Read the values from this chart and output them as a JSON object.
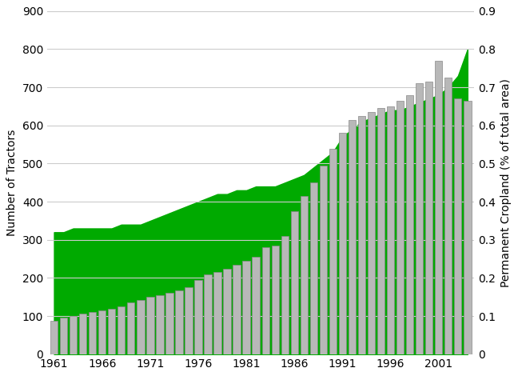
{
  "years": [
    1961,
    1962,
    1963,
    1964,
    1965,
    1966,
    1967,
    1968,
    1969,
    1970,
    1971,
    1972,
    1973,
    1974,
    1975,
    1976,
    1977,
    1978,
    1979,
    1980,
    1981,
    1982,
    1983,
    1984,
    1985,
    1986,
    1987,
    1988,
    1989,
    1990,
    1991,
    1992,
    1993,
    1994,
    1995,
    1996,
    1997,
    1998,
    1999,
    2000,
    2001,
    2002,
    2003,
    2004
  ],
  "tractors": [
    88,
    97,
    100,
    107,
    110,
    115,
    120,
    125,
    135,
    143,
    150,
    155,
    162,
    168,
    175,
    195,
    210,
    215,
    225,
    235,
    245,
    255,
    280,
    285,
    310,
    375,
    415,
    450,
    495,
    538,
    580,
    615,
    625,
    635,
    645,
    650,
    665,
    680,
    710,
    715,
    770,
    725,
    670,
    665
  ],
  "cropland": [
    0.32,
    0.32,
    0.33,
    0.33,
    0.33,
    0.33,
    0.33,
    0.34,
    0.34,
    0.34,
    0.35,
    0.36,
    0.37,
    0.38,
    0.39,
    0.4,
    0.41,
    0.42,
    0.42,
    0.43,
    0.43,
    0.44,
    0.44,
    0.44,
    0.45,
    0.46,
    0.47,
    0.49,
    0.51,
    0.53,
    0.57,
    0.59,
    0.61,
    0.62,
    0.63,
    0.64,
    0.64,
    0.65,
    0.66,
    0.67,
    0.68,
    0.7,
    0.73,
    0.8
  ],
  "bar_color": "#b8b8b8",
  "bar_edge_color": "#888888",
  "area_color": "#00aa00",
  "ylabel_left": "Number of Tractors",
  "ylabel_right": "Permanent Cropland (% of total area)",
  "ylim_left": [
    0,
    900
  ],
  "ylim_right": [
    0,
    0.9
  ],
  "yticks_left": [
    0,
    100,
    200,
    300,
    400,
    500,
    600,
    700,
    800,
    900
  ],
  "yticks_right": [
    0,
    0.1,
    0.2,
    0.3,
    0.4,
    0.5,
    0.6,
    0.7,
    0.8,
    0.9
  ],
  "xtick_years": [
    1961,
    1966,
    1971,
    1976,
    1981,
    1986,
    1991,
    1996,
    2001
  ],
  "bg_color": "#ffffff",
  "grid_color": "#cccccc",
  "xlim": [
    1960.3,
    2004.7
  ]
}
